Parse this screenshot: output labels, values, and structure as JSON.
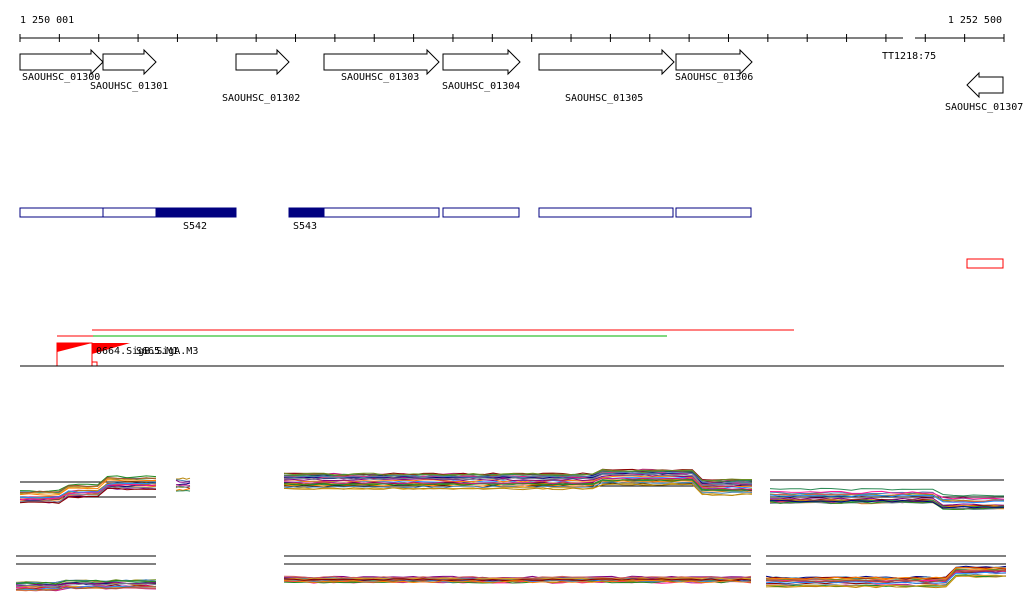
{
  "coords": {
    "start": "1 250 001",
    "end": "1 252 500"
  },
  "colors": {
    "gene_stroke": "#000000",
    "block_stroke": "#000080",
    "block_fill": "#000080",
    "red": "#ff0000",
    "green": "#00b000",
    "axis": "#000000",
    "signal_palette": [
      "#8b0000",
      "#ff7f00",
      "#2e8b57",
      "#000080",
      "#c71585",
      "#6b8e23",
      "#b8860b",
      "#4682b4",
      "#800080",
      "#708090",
      "#cd5c5c",
      "#ff1493",
      "#228b22",
      "#daa520",
      "#1e90ff",
      "#a0522d"
    ]
  },
  "genes": [
    {
      "id": "SAOUHSC_01300",
      "label": "SAOUHSC_01300"
    },
    {
      "id": "SAOUHSC_01301",
      "label": "SAOUHSC_01301"
    },
    {
      "id": "SAOUHSC_01302",
      "label": "SAOUHSC_01302"
    },
    {
      "id": "SAOUHSC_01303",
      "label": "SAOUHSC_01303"
    },
    {
      "id": "SAOUHSC_01304",
      "label": "SAOUHSC_01304"
    },
    {
      "id": "SAOUHSC_01305",
      "label": "SAOUHSC_01305"
    },
    {
      "id": "SAOUHSC_01306",
      "label": "SAOUHSC_01306"
    },
    {
      "id": "SAOUHSC_01307",
      "label": "SAOUHSC_01307"
    }
  ],
  "terminator": {
    "label": "TT1218:75"
  },
  "segments": [
    {
      "label": "S542"
    },
    {
      "label": "S543"
    }
  ],
  "features": {
    "label": "0664.SigB.SigA.M3",
    "label2": "S665.M1"
  }
}
